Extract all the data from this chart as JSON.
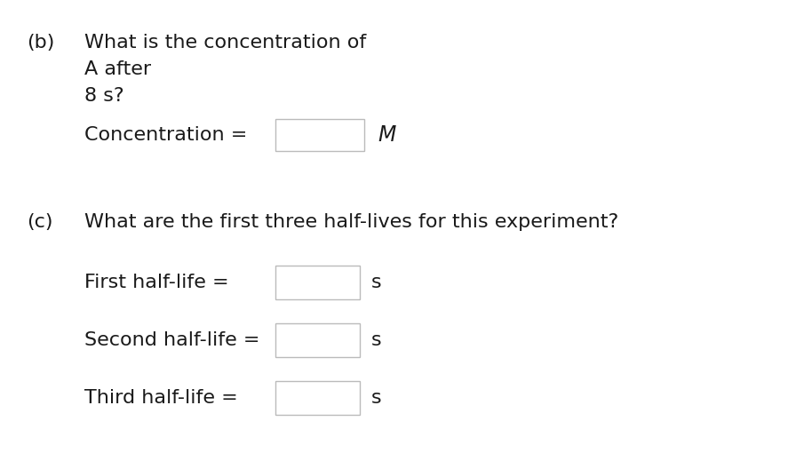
{
  "bg_color": "#ffffff",
  "text_color": "#1a1a1a",
  "label_b": "(b)",
  "line_b1": "What is the concentration of",
  "line_b2": "A after",
  "line_b3": "8 s?",
  "conc_label": "Concentration =",
  "conc_unit": "M",
  "label_c": "(c)",
  "line_c1": "What are the first three half-lives for this experiment?",
  "first_label": "First half-life =",
  "second_label": "Second half-life =",
  "third_label": "Third half-life =",
  "unit_s": "s",
  "box_fill": "#ffffff",
  "box_edge": "#bbbbbb",
  "font_size_main": 16,
  "figw": 8.96,
  "figh": 5.28
}
